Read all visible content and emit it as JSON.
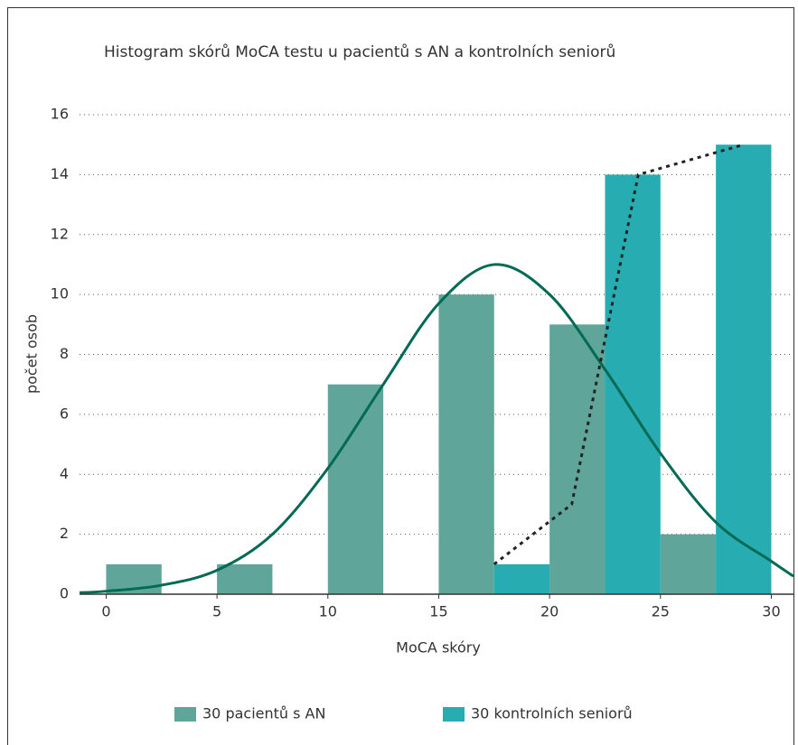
{
  "chart_data": {
    "type": "histogram",
    "title": "Histogram skórů MoCA testu u pacientů s AN a kontrolních seniorů",
    "x_label": "MoCA skóry",
    "y_label": "počet osob",
    "bins": [
      0,
      2.5,
      5,
      7.5,
      10,
      12.5,
      15,
      17.5,
      20,
      22.5,
      25,
      27.5,
      30
    ],
    "series": [
      {
        "name": "30 pacientů s AN",
        "color": "#5fa59a",
        "values": [
          1,
          0,
          1,
          0,
          7,
          0,
          10,
          0,
          9,
          0,
          2,
          0
        ]
      },
      {
        "name": "30 kontrolních seniorů",
        "color": "#27adb1",
        "values": [
          0,
          0,
          0,
          0,
          0,
          0,
          0,
          1,
          0,
          14,
          0,
          15
        ]
      }
    ],
    "lines": [
      {
        "color": "#006a54",
        "style": "solid",
        "x": [
          -1.2,
          0,
          2.5,
          5,
          7.5,
          10,
          12.5,
          15,
          17.5,
          20,
          22.5,
          25,
          27.5,
          30,
          31
        ],
        "values": [
          0.05,
          0.1,
          0.3,
          0.8,
          2.0,
          4.2,
          7.0,
          9.7,
          11.0,
          10.0,
          7.5,
          4.7,
          2.4,
          1.1,
          0.6
        ]
      },
      {
        "color": "#222222",
        "style": "dotted",
        "x": [
          17.5,
          21,
          24,
          28.75
        ],
        "values": [
          1,
          3,
          14,
          15
        ]
      }
    ],
    "xlim": [
      -1.2,
      31
    ],
    "ylim": [
      0,
      16
    ],
    "xticks": [
      0,
      5,
      10,
      15,
      20,
      25,
      30
    ],
    "yticks": [
      0,
      2,
      4,
      6,
      8,
      10,
      12,
      14,
      16
    ],
    "grid": true,
    "legend": "bottom"
  }
}
